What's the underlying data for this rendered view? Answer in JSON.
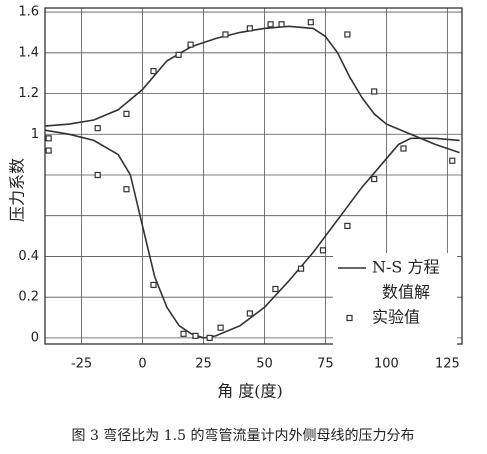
{
  "chart_data": {
    "type": "line",
    "x_label": "角 度(度)",
    "y_label": "压力系数",
    "caption": "图 3   弯径比为 1.5 的弯管流量计内外侧母线的压力分布",
    "xlim": [
      -40,
      131
    ],
    "ylim": [
      -0.03,
      1.62
    ],
    "xticks": [
      -25,
      0,
      25,
      50,
      75,
      100,
      125
    ],
    "yticks": [
      0,
      0.2,
      0.4,
      {
        "value": 0.6,
        "label": null
      },
      {
        "value": 0.8,
        "label": null
      },
      1,
      1.2,
      1.4,
      1.6
    ],
    "grid": true,
    "series": [
      {
        "style": "line",
        "color": "#333333",
        "x": [
          -40,
          -30,
          -20,
          -10,
          0,
          10,
          20,
          30,
          40,
          50,
          60,
          70,
          75,
          80,
          85,
          90,
          95,
          100,
          110,
          120,
          130
        ],
        "values": [
          1.04,
          1.05,
          1.07,
          1.12,
          1.22,
          1.36,
          1.43,
          1.47,
          1.5,
          1.52,
          1.53,
          1.52,
          1.48,
          1.4,
          1.28,
          1.18,
          1.1,
          1.05,
          1.0,
          0.95,
          0.91
        ]
      },
      {
        "style": "line",
        "color": "#333333",
        "x": [
          -40,
          -30,
          -20,
          -10,
          -5,
          0,
          5,
          10,
          15,
          20,
          25,
          30,
          40,
          50,
          60,
          70,
          80,
          90,
          100,
          105,
          110,
          120,
          130
        ],
        "values": [
          1.02,
          1.0,
          0.97,
          0.9,
          0.8,
          0.55,
          0.3,
          0.15,
          0.06,
          0.02,
          0.0,
          0.01,
          0.06,
          0.15,
          0.28,
          0.42,
          0.58,
          0.74,
          0.88,
          0.95,
          0.98,
          0.98,
          0.97
        ]
      },
      {
        "style": "marker",
        "color": "#333333",
        "x": [
          -38.5,
          -38.5,
          -18.4,
          -18.4,
          -6.6,
          -6.6,
          4.5,
          4.5,
          14.8,
          16.8,
          19.7,
          21.7,
          27.5,
          32,
          34,
          44,
          44,
          52.5,
          57,
          54.5,
          65,
          69,
          74,
          84,
          84,
          95,
          95,
          107,
          127
        ],
        "values": [
          0.98,
          0.92,
          1.03,
          0.8,
          1.1,
          0.73,
          0.26,
          1.31,
          1.39,
          0.02,
          1.44,
          0.01,
          0.0,
          0.05,
          1.49,
          1.52,
          0.12,
          1.54,
          1.54,
          0.24,
          0.34,
          1.55,
          0.43,
          0.55,
          1.49,
          0.78,
          1.21,
          0.93,
          0.87
        ]
      }
    ],
    "legend_entries": [
      {
        "style": "line",
        "lines": [
          "N-S 方程",
          "数值解"
        ]
      },
      {
        "style": "marker",
        "lines": [
          "实验值"
        ]
      }
    ]
  }
}
